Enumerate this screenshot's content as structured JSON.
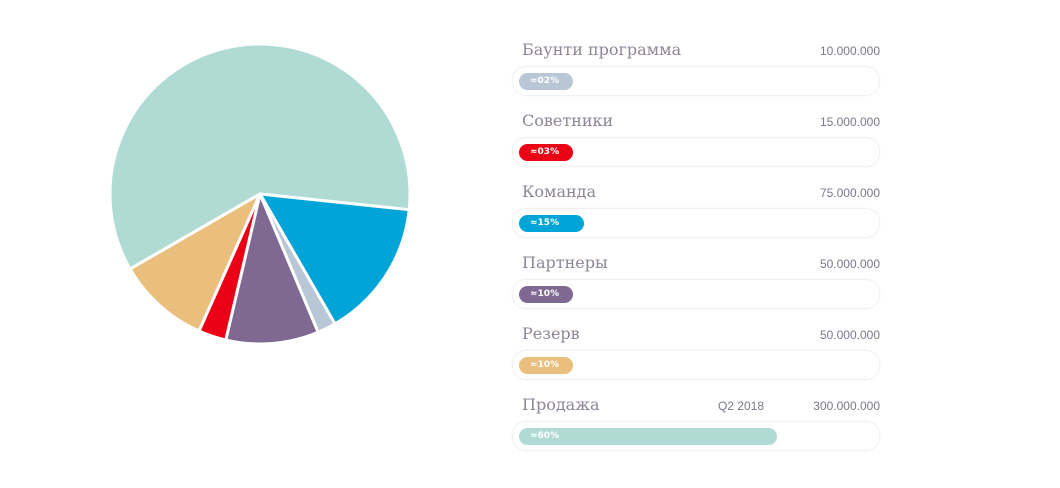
{
  "chart_data": {
    "type": "pie",
    "slices": [
      {
        "label": "Продажа",
        "value": 300000000,
        "percent_label": "≈60%",
        "fraction": 0.6,
        "color": "#afdbd4",
        "note": "Q2 2018",
        "value_label": "300.000.000"
      },
      {
        "label": "Команда",
        "value": 75000000,
        "percent_label": "≈15%",
        "fraction": 0.15,
        "color": "#00a4d6",
        "value_label": "75.000.000"
      },
      {
        "label": "Баунти программа",
        "value": 10000000,
        "percent_label": "≈02%",
        "fraction": 0.02,
        "color": "#b9c6d5",
        "value_label": "10.000.000"
      },
      {
        "label": "Партнеры",
        "value": 50000000,
        "percent_label": "≈10%",
        "fraction": 0.1,
        "color": "#7f6993",
        "value_label": "50.000.000"
      },
      {
        "label": "Советники",
        "value": 15000000,
        "percent_label": "≈03%",
        "fraction": 0.03,
        "color": "#ec0016",
        "value_label": "15.000.000"
      },
      {
        "label": "Резерв",
        "value": 50000000,
        "percent_label": "≈10%",
        "fraction": 0.1,
        "color": "#eabe7d",
        "value_label": "50.000.000"
      }
    ],
    "rows_order": [
      "Баунти программа",
      "Советники",
      "Команда",
      "Партнеры",
      "Резерв",
      "Продажа"
    ],
    "bar_max_fraction": 0.6
  }
}
